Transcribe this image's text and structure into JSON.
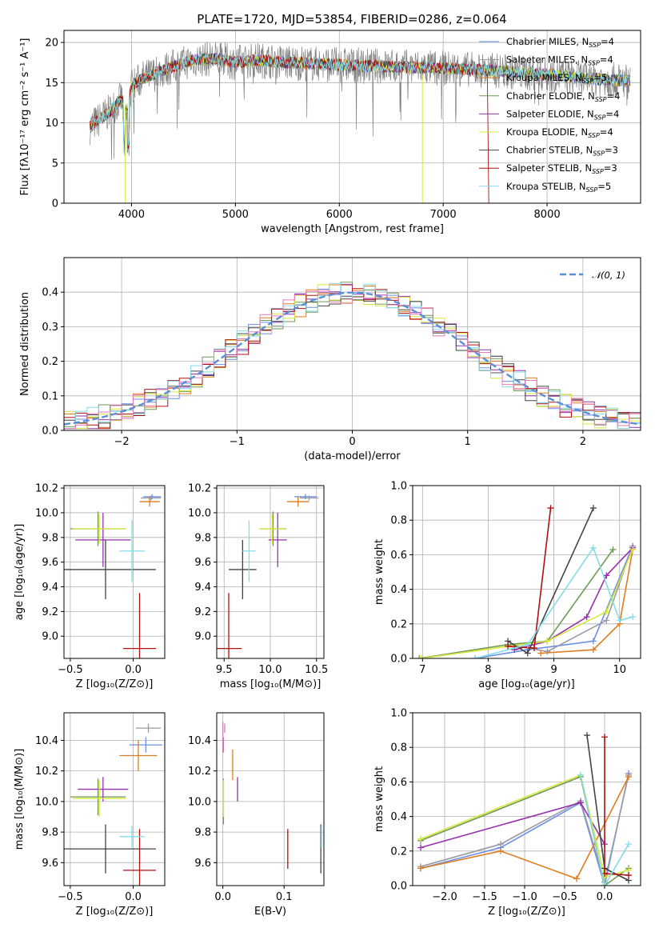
{
  "title": "PLATE=1720, MJD=53854, FIBERID=0286, z=0.064",
  "colors": {
    "chabrier_miles": "#6b8fe8",
    "salpeter_miles": "#9a9aa6",
    "kroupa_miles": "#e07b1f",
    "chabrier_elodie": "#6e9a55",
    "salpeter_elodie": "#9630b0",
    "kroupa_elodie": "#d8e83a",
    "chabrier_stelib": "#444444",
    "salpeter_stelib": "#b01010",
    "kroupa_stelib": "#84dce8",
    "spectrum": "#808080",
    "hist_pink": "#e87ab8",
    "gauss": "#5a8ed8"
  },
  "chart_data": [
    {
      "id": "spectrum",
      "type": "line",
      "title": "PLATE=1720, MJD=53854, FIBERID=0286, z=0.064",
      "xlabel": "wavelength [Angstrom, rest frame]",
      "ylabel": "Flux [fλ10⁻¹⁷ erg cm⁻² s⁻¹ A⁻¹]",
      "xlim": [
        3350,
        8900
      ],
      "ylim": [
        0,
        21.5
      ],
      "xticks": [
        "4000",
        "5000",
        "6000",
        "7000",
        "8000"
      ],
      "xtick_values": [
        4000,
        5000,
        6000,
        7000,
        8000
      ],
      "yticks": [
        "0",
        "5",
        "10",
        "15",
        "20"
      ],
      "ytick_values": [
        0,
        5,
        10,
        15,
        20
      ],
      "continuum": {
        "x": [
          3600,
          3700,
          3800,
          3900,
          3950,
          4000,
          4100,
          4200,
          4300,
          4400,
          4600,
          4800,
          5000,
          5200,
          5500,
          6000,
          6500,
          7000,
          7500,
          8000,
          8400,
          8800
        ],
        "y": [
          9.5,
          10.5,
          11.5,
          13.0,
          11.0,
          14.5,
          15.5,
          16.0,
          16.5,
          17.0,
          17.8,
          18.0,
          17.5,
          17.8,
          17.5,
          17.2,
          17.0,
          16.8,
          16.5,
          16.0,
          15.5,
          15.2
        ]
      },
      "legend": [
        {
          "label": "Chabrier MILES, N",
          "sub": "SSP",
          "val": "=4",
          "color_key": "chabrier_miles"
        },
        {
          "label": "Salpeter MILES, N",
          "sub": "SSP",
          "val": "=4",
          "color_key": "salpeter_miles"
        },
        {
          "label": "Kroupa MILES, N",
          "sub": "SSP",
          "val": "=5",
          "color_key": "kroupa_miles"
        },
        {
          "label": "Chabrier ELODIE, N",
          "sub": "SSP",
          "val": "=4",
          "color_key": "chabrier_elodie"
        },
        {
          "label": "Salpeter ELODIE, N",
          "sub": "SSP",
          "val": "=4",
          "color_key": "salpeter_elodie"
        },
        {
          "label": "Kroupa ELODIE, N",
          "sub": "SSP",
          "val": "=4",
          "color_key": "kroupa_elodie"
        },
        {
          "label": "Chabrier STELIB, N",
          "sub": "SSP",
          "val": "=3",
          "color_key": "chabrier_stelib"
        },
        {
          "label": "Salpeter STELIB, N",
          "sub": "SSP",
          "val": "=3",
          "color_key": "salpeter_stelib"
        },
        {
          "label": "Kroupa STELIB, N",
          "sub": "SSP",
          "val": "=5",
          "color_key": "kroupa_stelib"
        }
      ]
    },
    {
      "id": "residual_hist",
      "type": "histogram",
      "xlabel": "(data-model)/error",
      "ylabel": "Normed distribution",
      "xlim": [
        -2.5,
        2.5
      ],
      "ylim": [
        0,
        0.5
      ],
      "xticks": [
        "−2",
        "−1",
        "0",
        "1",
        "2"
      ],
      "xtick_values": [
        -2,
        -1,
        0,
        1,
        2
      ],
      "yticks": [
        "0.0",
        "0.1",
        "0.2",
        "0.3",
        "0.4"
      ],
      "ytick_values": [
        0,
        0.1,
        0.2,
        0.3,
        0.4
      ],
      "legend": "𝒩(0, 1)",
      "gaussian": {
        "mu": 0,
        "sigma": 1
      }
    },
    {
      "id": "age_vs_Z",
      "type": "errorbar",
      "xlabel": "Z [log₁₀(Z/Z⊙)]",
      "ylabel": "age  [log₁₀(age/yr)]",
      "xlim": [
        -0.55,
        0.25
      ],
      "ylim": [
        8.82,
        10.22
      ],
      "xticks": [
        "−0.5",
        "0.0"
      ],
      "xtick_values": [
        -0.5,
        0.0
      ],
      "yticks": [
        "9.0",
        "9.2",
        "9.4",
        "9.6",
        "9.8",
        "10.0",
        "10.2"
      ],
      "ytick_values": [
        9.0,
        9.2,
        9.4,
        9.6,
        9.8,
        10.0,
        10.2
      ],
      "points": [
        {
          "c": "chabrier_miles",
          "x": 0.15,
          "xe": 0.07,
          "y": 10.13,
          "ye": 0.02
        },
        {
          "c": "salpeter_miles",
          "x": 0.14,
          "xe": 0.08,
          "y": 10.12,
          "ye": 0.02
        },
        {
          "c": "kroupa_miles",
          "x": 0.13,
          "xe": 0.08,
          "y": 10.09,
          "ye": 0.04
        },
        {
          "c": "chabrier_elodie",
          "x": -0.28,
          "xe": 0.22,
          "y": 9.87,
          "ye": 0.14
        },
        {
          "c": "salpeter_elodie",
          "x": -0.24,
          "xe": 0.22,
          "y": 9.78,
          "ye": 0.22
        },
        {
          "c": "kroupa_elodie",
          "x": -0.27,
          "xe": 0.21,
          "y": 9.87,
          "ye": 0.12
        },
        {
          "c": "chabrier_stelib",
          "x": -0.22,
          "xe": 0.4,
          "y": 9.54,
          "ye": 0.24
        },
        {
          "c": "salpeter_stelib",
          "x": 0.05,
          "xe": 0.13,
          "y": 8.9,
          "ye": 0.45
        },
        {
          "c": "kroupa_stelib",
          "x": -0.01,
          "xe": 0.1,
          "y": 9.69,
          "ye": 0.25
        }
      ]
    },
    {
      "id": "age_vs_mass",
      "type": "errorbar",
      "xlabel": "mass [log₁₀(M/M⊙)]",
      "ylabel": "",
      "xlim": [
        9.42,
        10.58
      ],
      "ylim": [
        8.82,
        10.22
      ],
      "xticks": [
        "9.5",
        "10.0",
        "10.5"
      ],
      "xtick_values": [
        9.5,
        10.0,
        10.5
      ],
      "yticks": [
        "9.0",
        "9.2",
        "9.4",
        "9.6",
        "9.8",
        "10.0",
        "10.2"
      ],
      "ytick_values": [
        9.0,
        9.2,
        9.4,
        9.6,
        9.8,
        10.0,
        10.2
      ],
      "points": [
        {
          "c": "chabrier_miles",
          "x": 10.38,
          "xe": 0.12,
          "y": 10.13,
          "ye": 0.02
        },
        {
          "c": "salpeter_miles",
          "x": 10.42,
          "xe": 0.1,
          "y": 10.12,
          "ye": 0.02
        },
        {
          "c": "kroupa_miles",
          "x": 10.3,
          "xe": 0.12,
          "y": 10.09,
          "ye": 0.04
        },
        {
          "c": "chabrier_elodie",
          "x": 10.03,
          "xe": 0.14,
          "y": 9.87,
          "ye": 0.14
        },
        {
          "c": "salpeter_elodie",
          "x": 10.08,
          "xe": 0.1,
          "y": 9.78,
          "ye": 0.22
        },
        {
          "c": "kroupa_elodie",
          "x": 10.02,
          "xe": 0.14,
          "y": 9.87,
          "ye": 0.12
        },
        {
          "c": "chabrier_stelib",
          "x": 9.7,
          "xe": 0.15,
          "y": 9.54,
          "ye": 0.24
        },
        {
          "c": "salpeter_stelib",
          "x": 9.55,
          "xe": 0.14,
          "y": 8.9,
          "ye": 0.45
        },
        {
          "c": "kroupa_stelib",
          "x": 9.77,
          "xe": 0.07,
          "y": 9.69,
          "ye": 0.25
        }
      ]
    },
    {
      "id": "massweight_vs_age",
      "type": "line",
      "xlabel": "age  [log₁₀(age/yr)]",
      "ylabel": "mass weight",
      "xlim": [
        6.85,
        10.32
      ],
      "ylim": [
        0,
        1.0
      ],
      "xticks": [
        "7",
        "8",
        "9",
        "10"
      ],
      "xtick_values": [
        7,
        8,
        9,
        10
      ],
      "yticks": [
        "0.0",
        "0.2",
        "0.4",
        "0.6",
        "0.8",
        "1.0"
      ],
      "ytick_values": [
        0,
        0.2,
        0.4,
        0.6,
        0.8,
        1.0
      ],
      "series": [
        {
          "c": "chabrier_miles",
          "x": [
            7.8,
            8.6,
            9.6,
            10.2
          ],
          "y": [
            0.0,
            0.05,
            0.1,
            0.65
          ]
        },
        {
          "c": "salpeter_miles",
          "x": [
            8.3,
            8.9,
            9.8,
            10.2
          ],
          "y": [
            0.08,
            0.04,
            0.22,
            0.65
          ]
        },
        {
          "c": "kroupa_miles",
          "x": [
            8.8,
            9.6,
            10.0,
            10.2
          ],
          "y": [
            0.03,
            0.05,
            0.2,
            0.63
          ]
        },
        {
          "c": "chabrier_elodie",
          "x": [
            6.95,
            8.3,
            8.9,
            9.9
          ],
          "y": [
            0.0,
            0.08,
            0.1,
            0.63
          ]
        },
        {
          "c": "salpeter_elodie",
          "x": [
            8.4,
            8.9,
            9.5,
            9.8,
            10.2
          ],
          "y": [
            0.05,
            0.1,
            0.24,
            0.48,
            0.64
          ]
        },
        {
          "c": "kroupa_elodie",
          "x": [
            6.98,
            8.3,
            8.9,
            9.8,
            10.2
          ],
          "y": [
            0.0,
            0.07,
            0.1,
            0.27,
            0.63
          ]
        },
        {
          "c": "chabrier_stelib",
          "x": [
            8.3,
            8.6,
            9.6
          ],
          "y": [
            0.1,
            0.03,
            0.87
          ]
        },
        {
          "c": "salpeter_stelib",
          "x": [
            8.3,
            8.7,
            8.95
          ],
          "y": [
            0.07,
            0.06,
            0.87
          ]
        },
        {
          "c": "kroupa_stelib",
          "x": [
            7.8,
            8.6,
            9.6,
            10.0,
            10.2
          ],
          "y": [
            0.0,
            0.08,
            0.64,
            0.22,
            0.24
          ]
        }
      ]
    },
    {
      "id": "mass_vs_Z",
      "type": "errorbar",
      "xlabel": "Z [log₁₀(Z/Z⊙)]",
      "ylabel": "mass [log₁₀(M/M⊙)]",
      "xlim": [
        -0.55,
        0.25
      ],
      "ylim": [
        9.45,
        10.58
      ],
      "xticks": [
        "−0.5",
        "0.0"
      ],
      "xtick_values": [
        -0.5,
        0.0
      ],
      "yticks": [
        "9.6",
        "9.8",
        "10.0",
        "10.2",
        "10.4"
      ],
      "ytick_values": [
        9.6,
        9.8,
        10.0,
        10.2,
        10.4
      ],
      "points": [
        {
          "c": "chabrier_miles",
          "x": 0.1,
          "xe": 0.13,
          "y": 10.37,
          "ye": 0.05
        },
        {
          "c": "salpeter_miles",
          "x": 0.12,
          "xe": 0.1,
          "y": 10.48,
          "ye": 0.03
        },
        {
          "c": "kroupa_miles",
          "x": 0.04,
          "xe": 0.15,
          "y": 10.3,
          "ye": 0.1
        },
        {
          "c": "chabrier_elodie",
          "x": -0.28,
          "xe": 0.22,
          "y": 10.03,
          "ye": 0.12
        },
        {
          "c": "salpeter_elodie",
          "x": -0.24,
          "xe": 0.2,
          "y": 10.08,
          "ye": 0.08
        },
        {
          "c": "kroupa_elodie",
          "x": -0.27,
          "xe": 0.21,
          "y": 10.02,
          "ye": 0.12
        },
        {
          "c": "chabrier_stelib",
          "x": -0.22,
          "xe": 0.4,
          "y": 9.69,
          "ye": 0.16
        },
        {
          "c": "salpeter_stelib",
          "x": 0.05,
          "xe": 0.13,
          "y": 9.55,
          "ye": 0.27
        },
        {
          "c": "kroupa_stelib",
          "x": -0.01,
          "xe": 0.1,
          "y": 9.77,
          "ye": 0.07
        }
      ]
    },
    {
      "id": "mass_vs_ebv",
      "type": "errorbar",
      "xlabel": "E(B-V)",
      "ylabel": "",
      "xlim": [
        -0.01,
        0.165
      ],
      "ylim": [
        9.45,
        10.58
      ],
      "xticks": [
        "0.0",
        "0.1"
      ],
      "xtick_values": [
        0.0,
        0.1
      ],
      "yticks": [
        "9.6",
        "9.8",
        "10.0",
        "10.2",
        "10.4"
      ],
      "ytick_values": [
        9.6,
        9.8,
        10.0,
        10.2,
        10.4
      ],
      "points": [
        {
          "c": "chabrier_miles",
          "x": 0.001,
          "xe": 0,
          "y": 10.37,
          "ye": 0.05
        },
        {
          "c": "salpeter_miles",
          "x": 0.003,
          "xe": 0,
          "y": 10.48,
          "ye": 0.03
        },
        {
          "c": "kroupa_miles",
          "x": 0.016,
          "xe": 0,
          "y": 10.24,
          "ye": 0.1
        },
        {
          "c": "chabrier_elodie",
          "x": 0.001,
          "xe": 0,
          "y": 10.0,
          "ye": 0.15
        },
        {
          "c": "salpeter_elodie",
          "x": 0.024,
          "xe": 0,
          "y": 10.08,
          "ye": 0.08
        },
        {
          "c": "kroupa_elodie",
          "x": 0.001,
          "xe": 0,
          "y": 10.02,
          "ye": 0.12
        },
        {
          "c": "chabrier_stelib",
          "x": 0.16,
          "xe": 0,
          "y": 9.69,
          "ye": 0.16
        },
        {
          "c": "salpeter_stelib",
          "x": 0.106,
          "xe": 0,
          "y": 9.69,
          "ye": 0.13
        },
        {
          "c": "kroupa_stelib",
          "x": 0.161,
          "xe": 0,
          "y": 9.77,
          "ye": 0.07
        },
        {
          "c": "hist_pink",
          "x": 0.0,
          "xe": 0,
          "y": 10.42,
          "ye": 0.1
        }
      ]
    },
    {
      "id": "massweight_vs_Z",
      "type": "line",
      "xlabel": "Z [log₁₀(Z/Z⊙)]",
      "ylabel": "mass weight",
      "xlim": [
        -2.4,
        0.45
      ],
      "ylim": [
        0,
        1.0
      ],
      "xticks": [
        "−2.0",
        "−1.5",
        "−1.0",
        "−0.5",
        "0.0"
      ],
      "xtick_values": [
        -2.0,
        -1.5,
        -1.0,
        -0.5,
        0.0
      ],
      "yticks": [
        "0.0",
        "0.2",
        "0.4",
        "0.6",
        "0.8",
        "1.0"
      ],
      "ytick_values": [
        0,
        0.2,
        0.4,
        0.6,
        0.8,
        1.0
      ],
      "series": [
        {
          "c": "chabrier_miles",
          "x": [
            -2.3,
            -1.3,
            -0.3,
            0.0,
            0.3
          ],
          "y": [
            0.1,
            0.22,
            0.48,
            0.0,
            0.65
          ]
        },
        {
          "c": "salpeter_miles",
          "x": [
            -2.3,
            -1.3,
            -0.3,
            0.0,
            0.3
          ],
          "y": [
            0.11,
            0.24,
            0.49,
            0.02,
            0.64
          ]
        },
        {
          "c": "kroupa_miles",
          "x": [
            -2.3,
            -1.3,
            -0.35,
            0.3
          ],
          "y": [
            0.1,
            0.2,
            0.04,
            0.63
          ]
        },
        {
          "c": "chabrier_elodie",
          "x": [
            -2.3,
            -0.3,
            0.0,
            0.3
          ],
          "y": [
            0.26,
            0.63,
            0.0,
            0.1
          ]
        },
        {
          "c": "salpeter_elodie",
          "x": [
            -2.3,
            -0.3,
            0.0
          ],
          "y": [
            0.22,
            0.48,
            0.24
          ]
        },
        {
          "c": "kroupa_elodie",
          "x": [
            -2.3,
            -0.3,
            0.0,
            0.3
          ],
          "y": [
            0.27,
            0.64,
            0.05,
            0.09
          ]
        },
        {
          "c": "chabrier_stelib",
          "x": [
            -0.22,
            0.0,
            0.3
          ],
          "y": [
            0.87,
            0.1,
            0.03
          ]
        },
        {
          "c": "salpeter_stelib",
          "x": [
            0.0,
            0.0,
            0.3
          ],
          "y": [
            0.86,
            0.07,
            0.06
          ]
        },
        {
          "c": "kroupa_stelib",
          "x": [
            -0.3,
            0.0,
            0.3
          ],
          "y": [
            0.64,
            0.0,
            0.24
          ]
        }
      ]
    }
  ]
}
